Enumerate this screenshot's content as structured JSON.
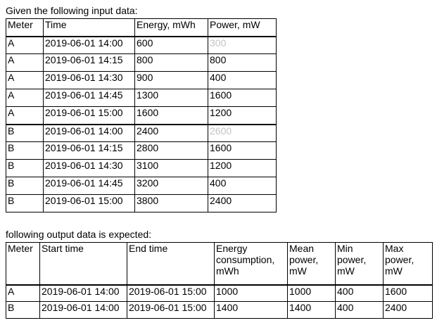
{
  "input_caption": "Given the following input data:",
  "input_table": {
    "headers": [
      "Meter",
      "Time",
      "Energy, mWh",
      "Power, mW"
    ],
    "rows": [
      [
        "A",
        "2019-06-01 14:00",
        "600",
        "300"
      ],
      [
        "A",
        "2019-06-01 14:15",
        "800",
        "800"
      ],
      [
        "A",
        "2019-06-01 14:30",
        "900",
        "400"
      ],
      [
        "A",
        "2019-06-01 14:45",
        "1300",
        "1600"
      ],
      [
        "A",
        "2019-06-01 15:00",
        "1600",
        "1200"
      ],
      [
        "B",
        "2019-06-01 14:00",
        "2400",
        "2600"
      ],
      [
        "B",
        "2019-06-01 14:15",
        "2800",
        "1600"
      ],
      [
        "B",
        "2019-06-01 14:30",
        "3100",
        "1200"
      ],
      [
        "B",
        "2019-06-01 14:45",
        "3200",
        "400"
      ],
      [
        "B",
        "2019-06-01 15:00",
        "3800",
        "2400"
      ]
    ]
  },
  "output_caption": "following output data is expected:",
  "output_table": {
    "headers": [
      "Meter",
      "Start time",
      "End time",
      "Energy consumption, mWh",
      "Mean power, mW",
      "Min power, mW",
      "Max power, mW"
    ],
    "rows": [
      [
        "A",
        "2019-06-01 14:00",
        "2019-06-01 15:00",
        "1000",
        "1000",
        "400",
        "1600"
      ],
      [
        "B",
        "2019-06-01 14:00",
        "2019-06-01 15:00",
        "1400",
        "1400",
        "400",
        "2400"
      ]
    ]
  },
  "colors": {
    "text": "#000000",
    "dimmed_value": "#c4c4c4",
    "border": "#000000"
  }
}
